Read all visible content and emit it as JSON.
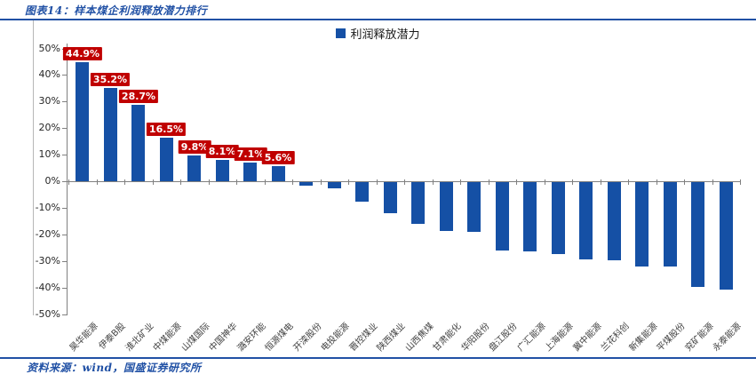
{
  "header": {
    "title": "图表14：样本煤企利润释放潜力排行"
  },
  "legend": {
    "label": "利润释放潜力"
  },
  "chart_data": {
    "type": "bar",
    "title": "利润释放潜力",
    "categories": [
      "昊华能源",
      "伊泰B股",
      "淮北矿业",
      "中煤能源",
      "山煤国际",
      "中国神华",
      "潞安环能",
      "恒源煤电",
      "开滦股份",
      "电投能源",
      "晋控煤业",
      "陕西煤业",
      "山西焦煤",
      "甘肃能化",
      "华阳股份",
      "盘江股份",
      "广汇能源",
      "上海能源",
      "冀中能源",
      "兰花科创",
      "新集能源",
      "平煤股份",
      "兖矿能源",
      "永泰能源"
    ],
    "values": [
      44.9,
      35.2,
      28.7,
      16.5,
      9.8,
      8.1,
      7.1,
      5.6,
      -1.3,
      -2.3,
      -7.2,
      -11.8,
      -15.6,
      -18.4,
      -18.6,
      -25.6,
      -26.2,
      -27.0,
      -29.2,
      -29.5,
      -31.8,
      -31.8,
      -39.4,
      -40.4
    ],
    "data_labels": [
      "44.9%",
      "35.2%",
      "28.7%",
      "16.5%",
      "9.8%",
      "8.1%",
      "7.1%",
      "5.6%"
    ],
    "xlabel": "",
    "ylabel": "",
    "ylim": [
      -50,
      50
    ],
    "yticks": [
      50,
      40,
      30,
      20,
      10,
      0,
      -10,
      -20,
      -30,
      -40,
      -50
    ],
    "ytick_suffix": "%",
    "legend_position": "top-center",
    "grid": false
  },
  "footer": {
    "source": "资料来源：wind，国盛证券研究所"
  },
  "colors": {
    "bar": "#1550a5",
    "data_label_bg": "#c00000",
    "data_label_text": "#ffffff",
    "accent_blue": "#2151a5",
    "axis_gray": "#808080"
  }
}
